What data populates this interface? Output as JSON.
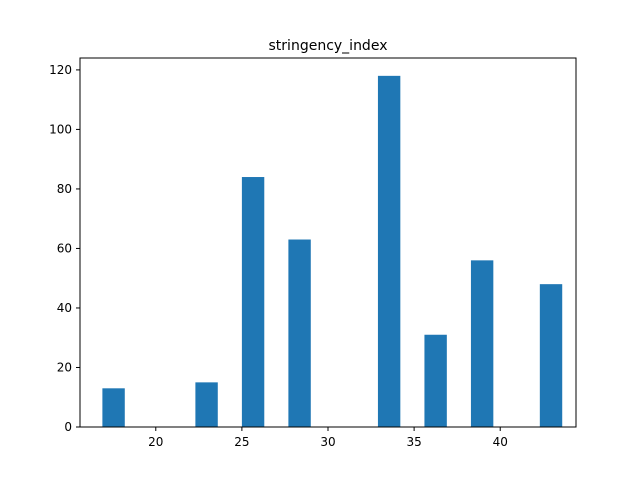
{
  "chart_data": {
    "type": "bar",
    "title": "stringency_index",
    "xlabel": "",
    "ylabel": "",
    "bar_color": "#1f77b4",
    "xlim": [
      15.6,
      44.4
    ],
    "ylim": [
      0,
      124
    ],
    "xticks": [
      20,
      25,
      30,
      35,
      40
    ],
    "yticks": [
      0,
      20,
      40,
      60,
      80,
      100,
      120
    ],
    "grid": false,
    "bars": [
      {
        "x0": 16.9,
        "x1": 18.2,
        "value": 13
      },
      {
        "x0": 22.3,
        "x1": 23.6,
        "value": 15
      },
      {
        "x0": 25.0,
        "x1": 26.3,
        "value": 84
      },
      {
        "x0": 27.7,
        "x1": 29.0,
        "value": 63
      },
      {
        "x0": 32.9,
        "x1": 34.2,
        "value": 118
      },
      {
        "x0": 35.6,
        "x1": 36.9,
        "value": 31
      },
      {
        "x0": 38.3,
        "x1": 39.6,
        "value": 56
      },
      {
        "x0": 42.3,
        "x1": 43.6,
        "value": 48
      }
    ]
  }
}
